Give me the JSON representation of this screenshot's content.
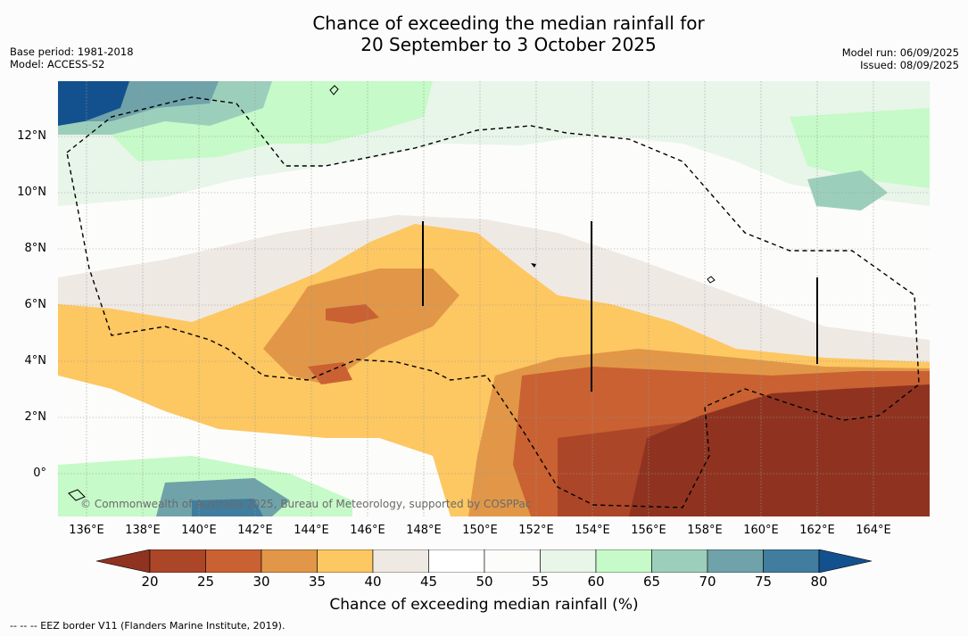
{
  "title_line1": "Chance of exceeding the median rainfall for",
  "title_line2": "20 September to 3 October 2025",
  "meta": {
    "base_period": "Base period: 1981-2018",
    "model": "Model: ACCESS-S2",
    "model_run": "Model run: 06/09/2025",
    "issued": "Issued: 08/09/2025"
  },
  "map": {
    "lat_labels": [
      "12°N",
      "10°N",
      "8°N",
      "6°N",
      "4°N",
      "2°N",
      "0°"
    ],
    "lon_labels": [
      "136°E",
      "138°E",
      "140°E",
      "142°E",
      "144°E",
      "146°E",
      "148°E",
      "150°E",
      "152°E",
      "154°E",
      "156°E",
      "158°E",
      "160°E",
      "162°E",
      "164°E"
    ],
    "copyright": "© Commonwealth of Australia 2025, Bureau of Meteorology, supported by COSPPac"
  },
  "legend": {
    "ticks": [
      "20",
      "25",
      "30",
      "35",
      "40",
      "45",
      "50",
      "55",
      "60",
      "65",
      "70",
      "75",
      "80"
    ],
    "colors": [
      "#8f3320",
      "#ac4629",
      "#c96132",
      "#e19747",
      "#fdc762",
      "#efe9e4",
      "#ffffff",
      "#fcfdfb",
      "#e8f5e9",
      "#c6fac8",
      "#9ccfbb",
      "#6fa3a9",
      "#417d9e",
      "#13518e"
    ],
    "title": "Chance of exceeding median rainfall (%)"
  },
  "footnote": "--  --  -- EEZ border V11 (Flanders Marine Institute, 2019)."
}
